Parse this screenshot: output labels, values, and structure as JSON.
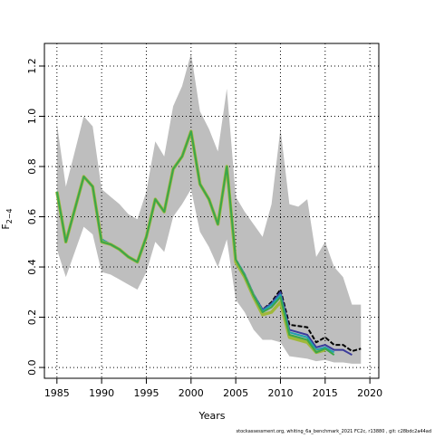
{
  "chart_data": {
    "type": "line",
    "x_label": "Years",
    "y_label": "F",
    "y_label_sub": "2−4",
    "footnote": "stockassessment.org, whiting_6a_benchmark_2021 FC2c, r13880 , git: c28bdc2a44ad",
    "x": [
      1985,
      1986,
      1987,
      1988,
      1989,
      1990,
      1991,
      1992,
      1993,
      1994,
      1995,
      1996,
      1997,
      1998,
      1999,
      2000,
      2001,
      2002,
      2003,
      2004,
      2005,
      2006,
      2007,
      2008,
      2009,
      2010,
      2011,
      2012,
      2013,
      2014,
      2015,
      2016,
      2017,
      2018,
      2019
    ],
    "band": {
      "color": "#bebebe",
      "upper": [
        0.97,
        0.72,
        0.86,
        1.0,
        0.96,
        0.71,
        0.68,
        0.65,
        0.61,
        0.59,
        0.7,
        0.9,
        0.84,
        1.04,
        1.12,
        1.25,
        1.02,
        0.95,
        0.86,
        1.11,
        0.68,
        0.62,
        0.57,
        0.52,
        0.65,
        0.95,
        0.65,
        0.64,
        0.67,
        0.44,
        0.5,
        0.4,
        0.36,
        0.25,
        0.25
      ],
      "lower": [
        0.47,
        0.36,
        0.46,
        0.56,
        0.53,
        0.38,
        0.37,
        0.35,
        0.33,
        0.31,
        0.38,
        0.5,
        0.46,
        0.6,
        0.65,
        0.71,
        0.54,
        0.48,
        0.4,
        0.51,
        0.27,
        0.22,
        0.15,
        0.11,
        0.11,
        0.1,
        0.045,
        0.04,
        0.035,
        0.025,
        0.03,
        0.02,
        0.02,
        0.015,
        0.015
      ]
    },
    "series": [
      {
        "color": "#000000",
        "dashed": true,
        "values": [
          0.7,
          0.5,
          0.63,
          0.76,
          0.72,
          0.51,
          0.49,
          0.47,
          0.44,
          0.42,
          0.52,
          0.67,
          0.62,
          0.79,
          0.84,
          0.94,
          0.73,
          0.67,
          0.57,
          0.8,
          0.43,
          0.37,
          0.29,
          0.23,
          0.26,
          0.31,
          0.17,
          0.165,
          0.16,
          0.1,
          0.12,
          0.09,
          0.09,
          0.065,
          0.075
        ]
      },
      {
        "color": "#3b3b9b",
        "values": [
          0.7,
          0.5,
          0.63,
          0.76,
          0.72,
          0.51,
          0.49,
          0.47,
          0.44,
          0.42,
          0.52,
          0.67,
          0.62,
          0.79,
          0.84,
          0.94,
          0.73,
          0.67,
          0.57,
          0.8,
          0.43,
          0.37,
          0.29,
          0.23,
          0.255,
          0.3,
          0.15,
          0.14,
          0.13,
          0.08,
          0.09,
          0.07,
          0.07,
          0.05,
          null
        ]
      },
      {
        "color": "#21a0b0",
        "values": [
          0.7,
          0.5,
          0.63,
          0.76,
          0.72,
          0.51,
          0.49,
          0.47,
          0.44,
          0.42,
          0.52,
          0.67,
          0.62,
          0.79,
          0.84,
          0.94,
          0.73,
          0.67,
          0.57,
          0.8,
          0.43,
          0.37,
          0.29,
          0.225,
          0.25,
          0.29,
          0.14,
          0.13,
          0.12,
          0.07,
          0.08,
          0.06,
          null,
          null,
          null
        ]
      },
      {
        "color": "#a0b83a",
        "values": [
          0.7,
          0.5,
          0.63,
          0.76,
          0.72,
          0.5,
          0.49,
          0.47,
          0.44,
          0.42,
          0.52,
          0.67,
          0.62,
          0.79,
          0.84,
          0.94,
          0.73,
          0.67,
          0.57,
          0.8,
          0.42,
          0.36,
          0.28,
          0.21,
          0.22,
          0.26,
          0.12,
          0.11,
          0.1,
          0.06,
          0.07,
          null,
          null,
          null,
          null
        ]
      },
      {
        "color": "#3aa64a",
        "values": [
          0.7,
          0.5,
          0.63,
          0.76,
          0.72,
          0.5,
          0.49,
          0.47,
          0.44,
          0.42,
          0.52,
          0.67,
          0.62,
          0.79,
          0.84,
          0.94,
          0.73,
          0.67,
          0.57,
          0.8,
          0.43,
          0.365,
          0.285,
          0.22,
          0.24,
          0.28,
          0.13,
          0.12,
          0.11,
          0.06,
          0.075,
          0.05,
          null,
          null,
          null
        ]
      }
    ],
    "xlim": [
      1983.6,
      2021
    ],
    "ylim": [
      -0.043,
      1.29
    ],
    "xticks": [
      1985,
      1990,
      1995,
      2000,
      2005,
      2010,
      2015,
      2020
    ],
    "yticks": [
      {
        "value": 0,
        "label": "0.0"
      },
      0.2,
      0.4,
      0.6,
      0.8,
      {
        "value": 1,
        "label": "1.0"
      },
      1.2
    ],
    "grid": true
  }
}
